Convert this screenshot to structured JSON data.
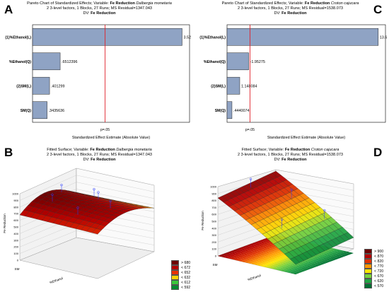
{
  "panels": {
    "A": {
      "letter": "A",
      "title_pre": "Pareto Chart of Standardized Effects; Variable: ",
      "title_var": "Fe Reduction",
      "title_species": "Dalbergia monetaria",
      "line2": "2 3-level factors, 1 Blocks, 27 Runs; MS Residual=1347.043",
      "line3_pre": "DV: ",
      "line3_var": "Fe Reduction"
    },
    "B": {
      "letter": "B",
      "title_pre": "Fitted Surface; Variable: ",
      "title_var": "Fe Reduction",
      "title_species": "Dalbergia monetaria",
      "line2": "2 3-level factors, 1 Blocks, 27 Runs; MS Residual=1347.043",
      "line3_pre": "DV: ",
      "line3_var": "Fe Reduction"
    },
    "C": {
      "letter": "C",
      "title_pre": "Pareto Chart of Standardized Effects; Variable: ",
      "title_var": "Fe Reduction",
      "title_species": "Croton cajucara",
      "line2": "2 3-level factors, 1 Blocks, 27 Runs; MS Residual=1538.073",
      "line3_pre": "DV: ",
      "line3_var": "Fe Reduction"
    },
    "D": {
      "letter": "D",
      "title_pre": "Fitted Surface; Variable: ",
      "title_var": "Fe Reduction",
      "title_species": "Croton cajucara",
      "line2": "2 3-level factors, 1 Blocks, 27 Runs; MS Residual=1538.073",
      "line3_pre": "DV: ",
      "line3_var": "Fe Reduction"
    }
  },
  "chart_data": [
    {
      "type": "bar",
      "orientation": "horizontal",
      "categories": [
        "(1)%Ethanol(L)",
        "%Ethanol(Q)",
        "(2)SM(L)",
        "SM(Q)"
      ],
      "values": [
        3.524259,
        0.6512396,
        0.401299,
        0.3435636
      ],
      "value_labels": [
        "3.524259",
        ".6512396",
        ".401299",
        ".3435636"
      ],
      "xlim": [
        0,
        3.7
      ],
      "reference_line": 1.71,
      "reference_label": "p=.05",
      "xlabel": "Standardized Effect Estimate (Absolute Value)",
      "colors": {
        "bar": "#8fa3c4",
        "bar_edge": "#222222",
        "ref_line": "#e0202a"
      }
    },
    {
      "type": "bar",
      "orientation": "horizontal",
      "categories": [
        "(1)%Ethanol(L)",
        "%Ethanol(Q)",
        "(2)SM(L)",
        "SM(Q)"
      ],
      "values": [
        13.6493,
        1.95275,
        1.148084,
        0.4440074
      ],
      "value_labels": [
        "13.6493",
        "-1.95275",
        "1.148084",
        ".4440074"
      ],
      "xlim": [
        0,
        14.3
      ],
      "reference_line": 2.07,
      "reference_label": "p=.05",
      "xlabel": "Standardized Effect Estimate (Absolute Value)",
      "colors": {
        "bar": "#8fa3c4",
        "bar_edge": "#222222",
        "ref_line": "#e0202a"
      }
    },
    {
      "type": "surface",
      "zlabel": "Fe Reduction",
      "xlabel": "%Ethanol",
      "ylabel": "SM",
      "z_ticks": [
        "0",
        "100",
        "200",
        "300",
        "400",
        "500",
        "600",
        "700",
        "800",
        "900",
        "1000"
      ],
      "legend": [
        {
          "label": "> 680",
          "color": "#6e0000"
        },
        {
          "label": "< 672",
          "color": "#b40000"
        },
        {
          "label": "< 652",
          "color": "#e83200"
        },
        {
          "label": "< 632",
          "color": "#ffd200"
        },
        {
          "label": "< 612",
          "color": "#3cc83c"
        },
        {
          "label": "< 592",
          "color": "#008c32"
        }
      ]
    },
    {
      "type": "surface",
      "zlabel": "Fe Reduction",
      "xlabel": "%Ethanol",
      "ylabel": "SM",
      "z_ticks": [
        "0",
        "100",
        "200",
        "300",
        "400",
        "500",
        "600",
        "700",
        "800",
        "900",
        "1000"
      ],
      "legend": [
        {
          "label": "> 900",
          "color": "#6e0000"
        },
        {
          "label": "< 870",
          "color": "#b40000"
        },
        {
          "label": "< 820",
          "color": "#e03200"
        },
        {
          "label": "< 770",
          "color": "#ff9600"
        },
        {
          "label": "< 720",
          "color": "#ffe600"
        },
        {
          "label": "< 670",
          "color": "#78d23c"
        },
        {
          "label": "< 620",
          "color": "#22a544"
        },
        {
          "label": "< 570",
          "color": "#006e32"
        }
      ]
    }
  ]
}
